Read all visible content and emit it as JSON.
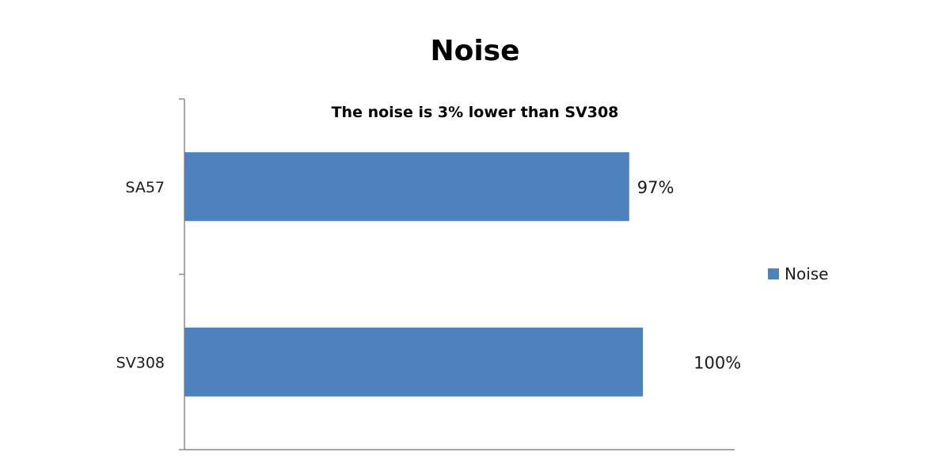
{
  "chart_data": {
    "type": "bar",
    "orientation": "horizontal",
    "title": "Noise",
    "subtitle": "The noise is  3%  lower than SV308",
    "categories": [
      "SA57",
      "SV308"
    ],
    "series": [
      {
        "name": "Noise",
        "values": [
          97,
          100
        ],
        "labels": [
          "97%",
          "100%"
        ],
        "color": "#4f81bd"
      }
    ],
    "xlim": [
      0,
      120
    ],
    "grid": false,
    "legend": "right"
  }
}
